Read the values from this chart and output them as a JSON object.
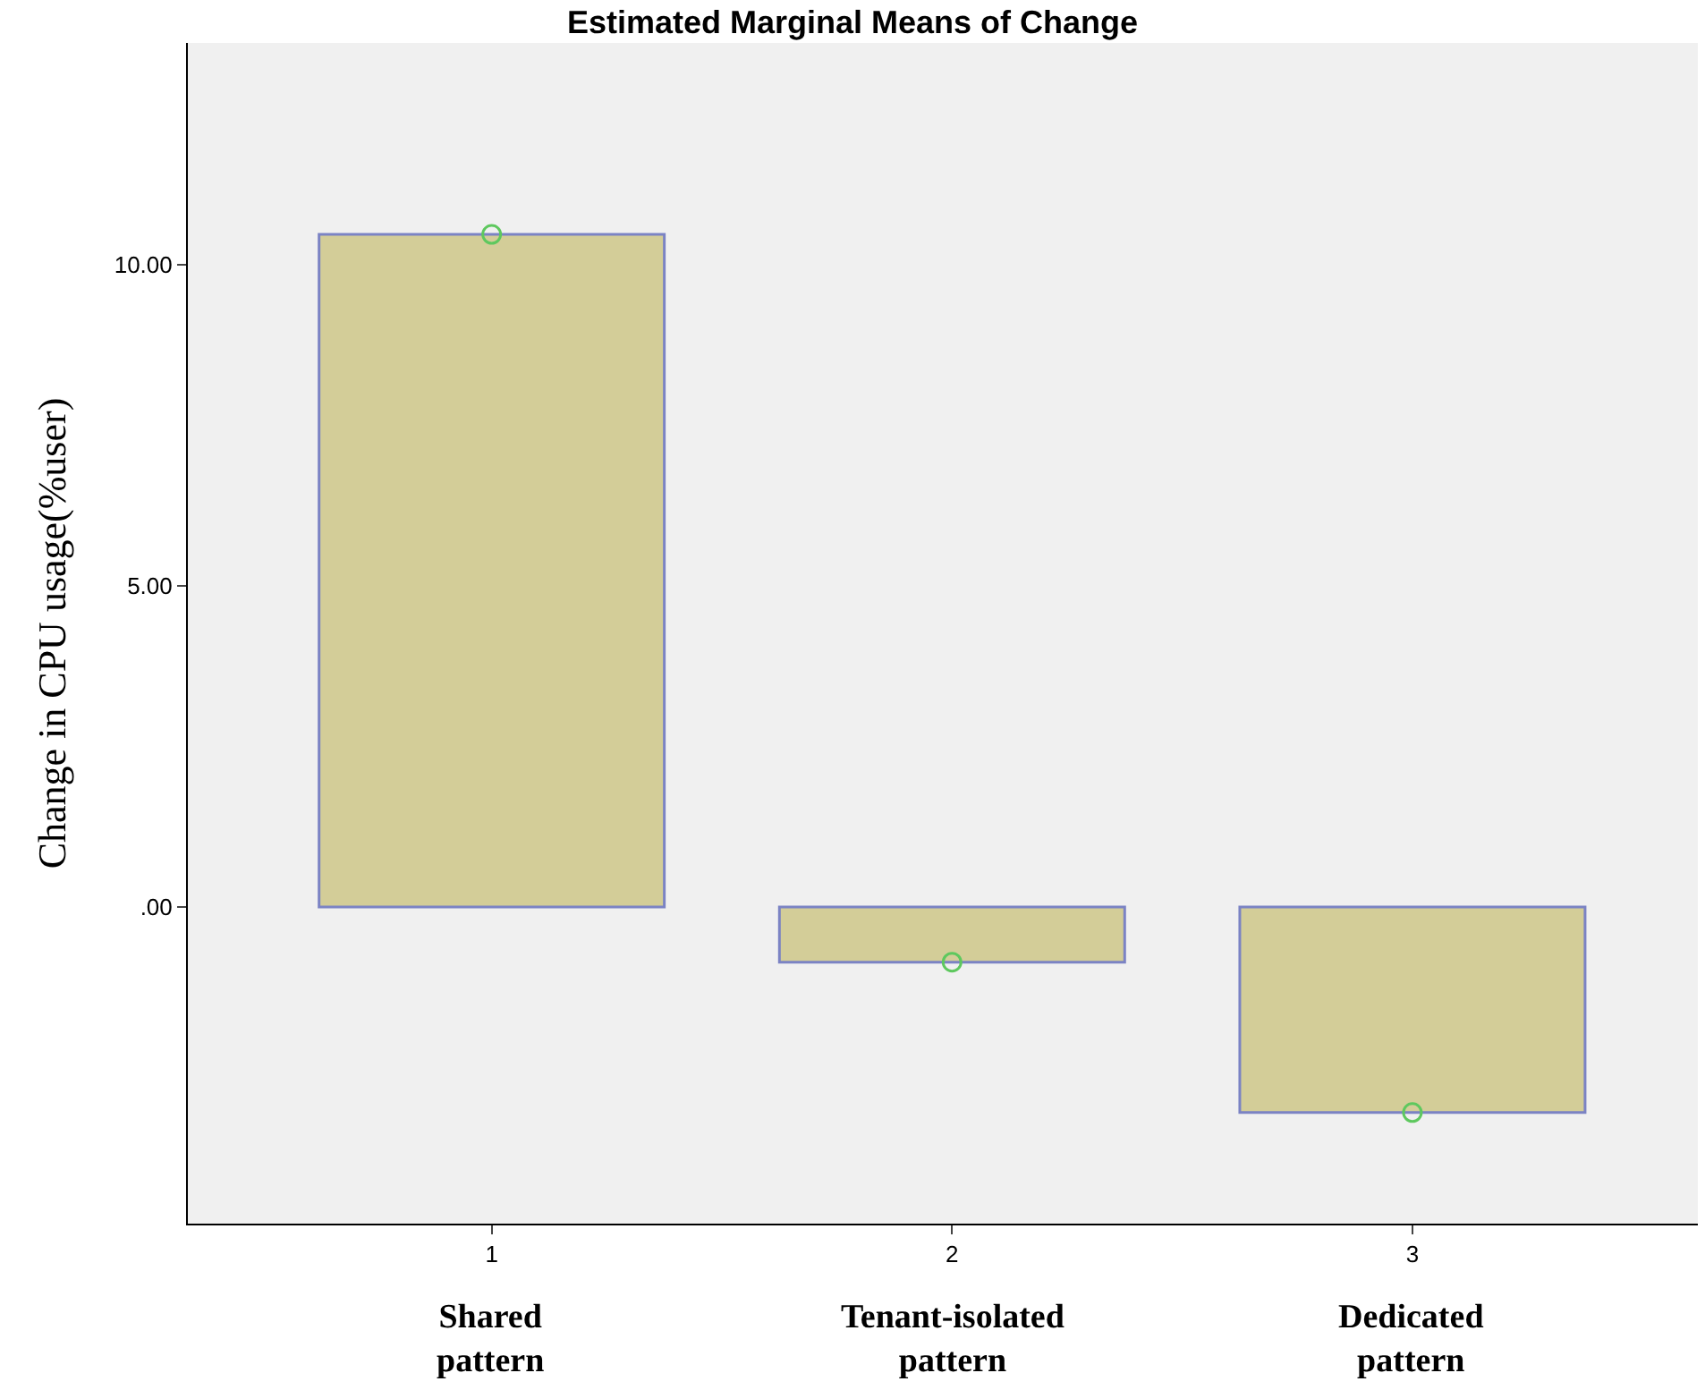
{
  "chart_data": {
    "type": "bar",
    "title": "Estimated Marginal Means of Change",
    "ylabel": "Change in CPU usage(%user)",
    "categories": [
      "1",
      "2",
      "3"
    ],
    "series": [
      {
        "color": "#d3cd98",
        "values": [
          10.47,
          -0.86,
          -3.2
        ]
      },
      {
        "type": "scatter",
        "color": "#5ec85e",
        "x": [
          "1",
          "2",
          "3"
        ],
        "values": [
          10.47,
          -0.86,
          -3.2
        ],
        "marker": "circle"
      }
    ],
    "annotations": [
      "Shared pattern",
      "Tenant-isolated pattern",
      "Dedicated pattern"
    ],
    "ylim": [
      -4.93,
      13.45
    ],
    "yticks": [
      {
        "value": 0,
        "label": ".00"
      },
      {
        "value": 5,
        "label": "5.00"
      },
      {
        "value": 10,
        "label": "10.00"
      }
    ],
    "grid": false
  }
}
